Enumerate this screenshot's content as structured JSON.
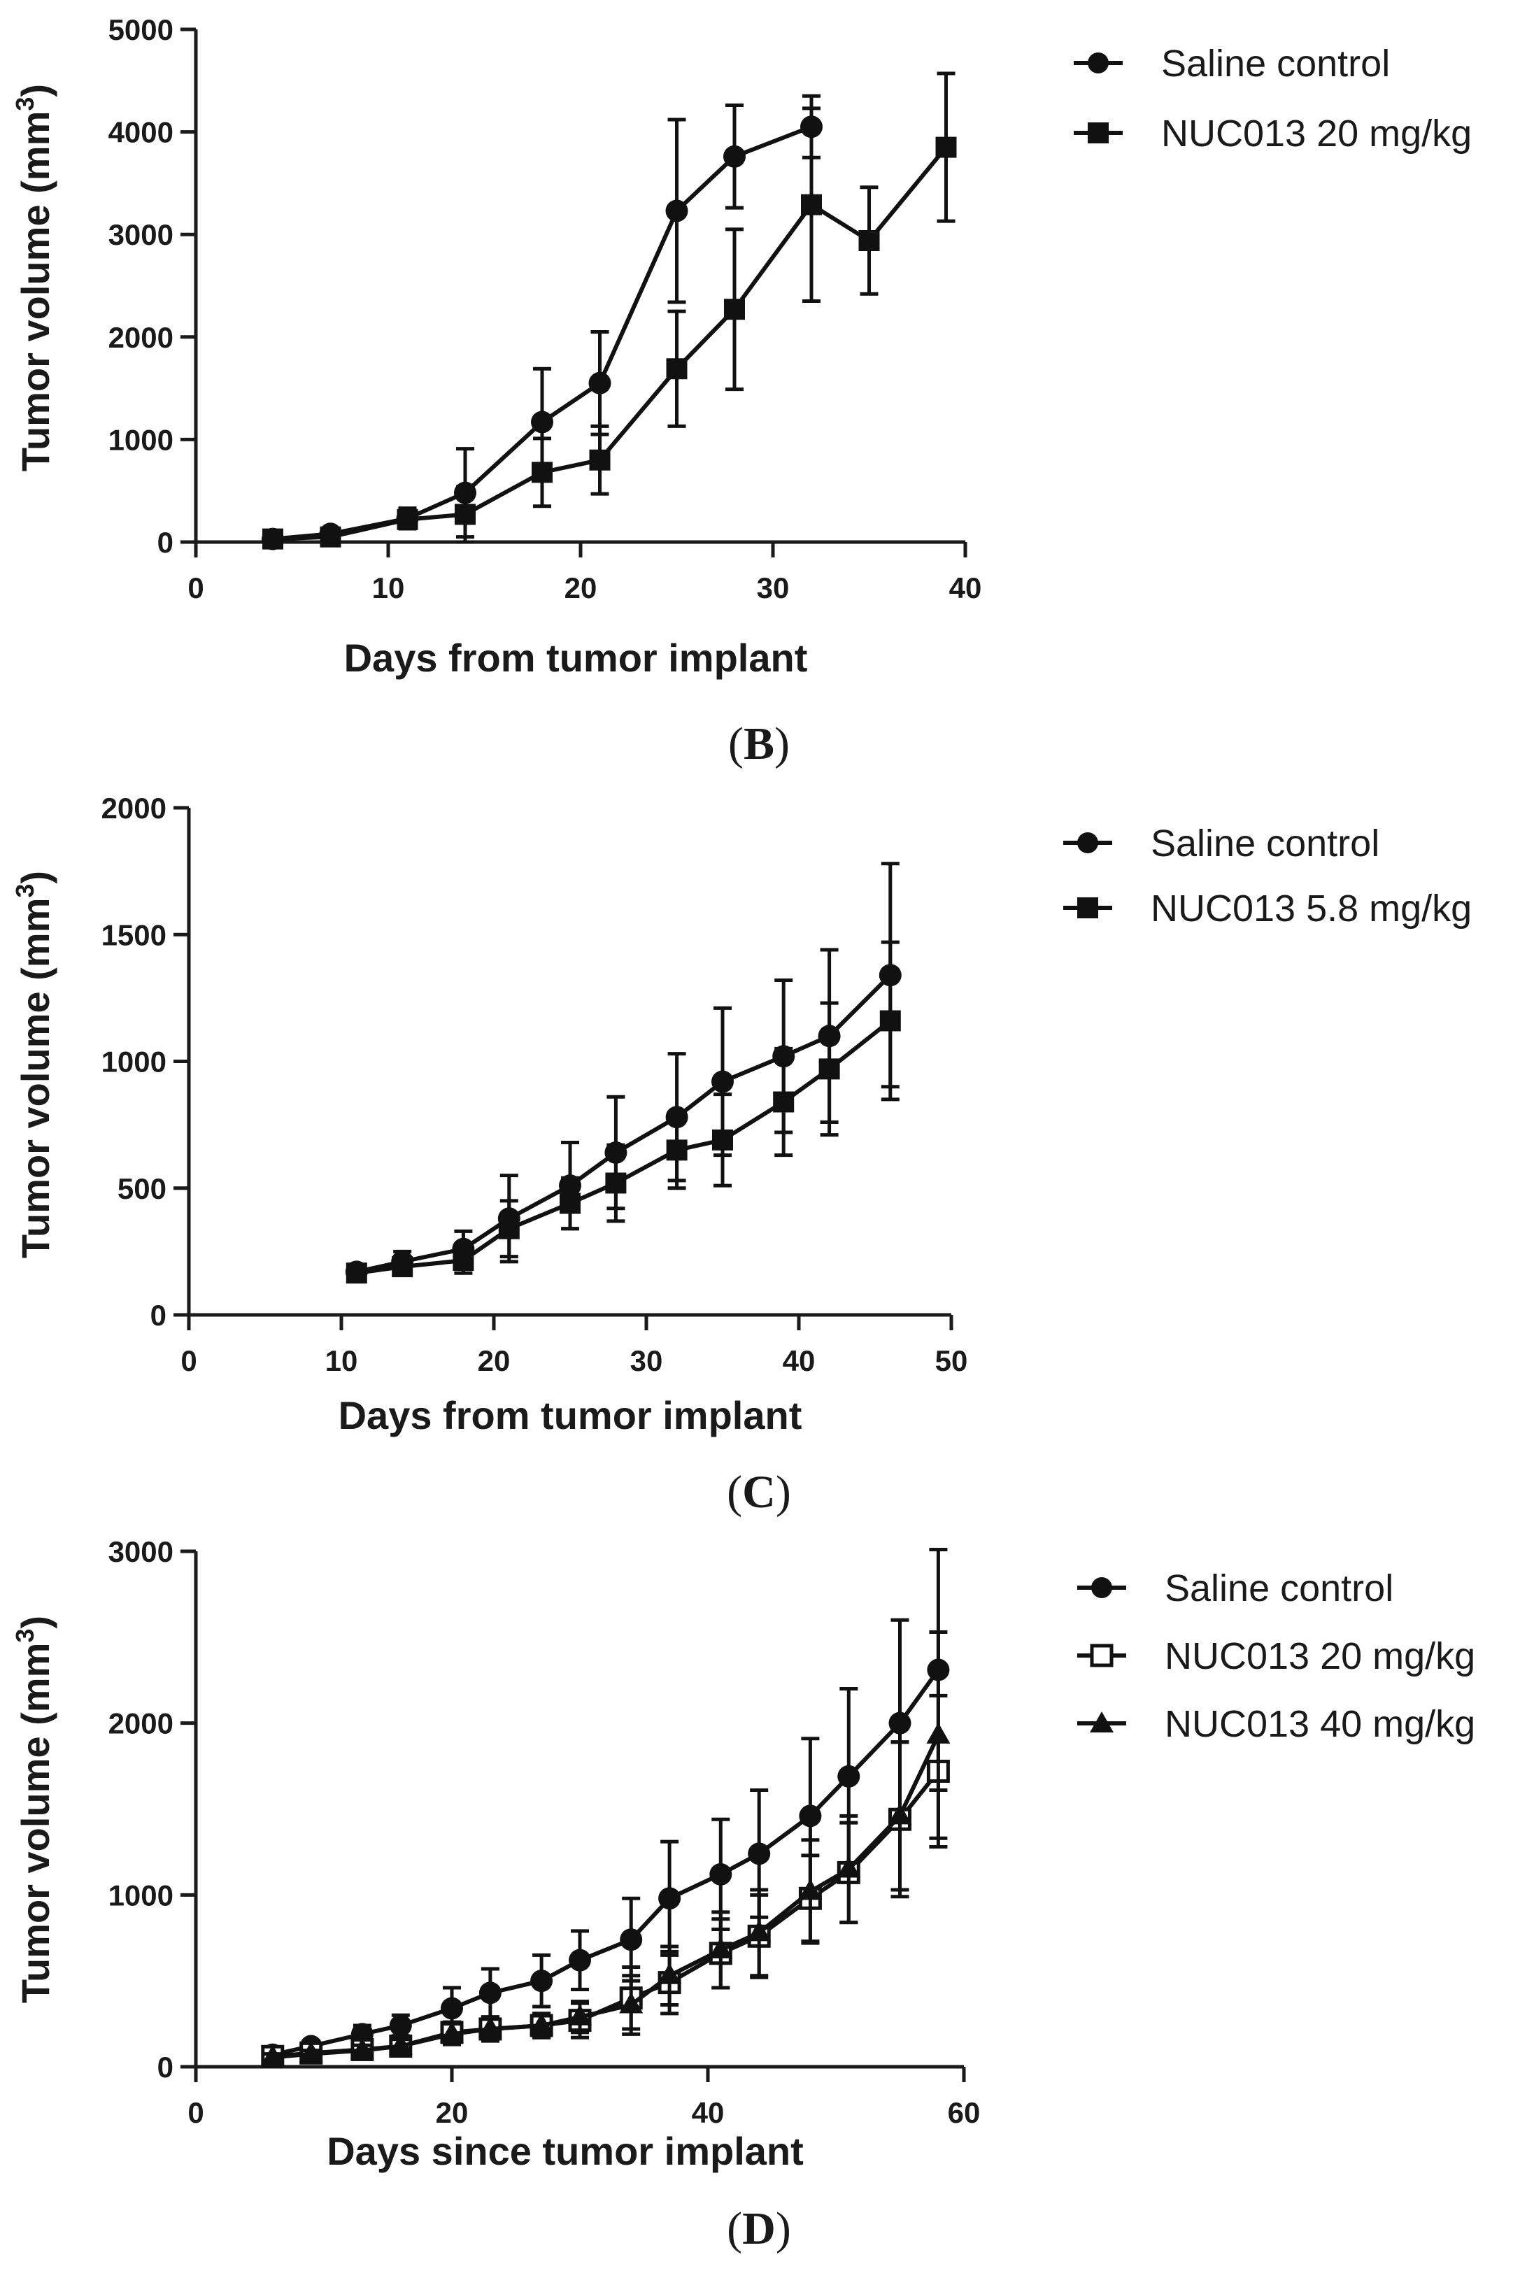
{
  "chart_data": [
    {
      "type": "line",
      "panel_label": "B",
      "xlabel": "Days from tumor implant",
      "ylabel": "Tumor volume (mm",
      "ylabel_sup": "3",
      "ylabel_close": ")",
      "xlim": [
        0,
        40
      ],
      "ylim": [
        0,
        5000
      ],
      "xticks": [
        0,
        10,
        20,
        30,
        40
      ],
      "yticks": [
        0,
        1000,
        2000,
        3000,
        4000,
        5000
      ],
      "legend_position": "right-top",
      "series": [
        {
          "name": "Saline control",
          "marker": "circle",
          "x": [
            4,
            7,
            11,
            14,
            18,
            21,
            25,
            28,
            32
          ],
          "y": [
            30,
            80,
            230,
            480,
            1170,
            1550,
            3230,
            3760,
            4050
          ],
          "err": [
            20,
            40,
            100,
            430,
            520,
            500,
            890,
            500,
            300
          ]
        },
        {
          "name": "NUC013 20 mg/kg",
          "marker": "square",
          "x": [
            4,
            7,
            11,
            14,
            18,
            21,
            25,
            28,
            32,
            35,
            39
          ],
          "y": [
            30,
            50,
            220,
            270,
            680,
            800,
            1690,
            2270,
            3290,
            2940,
            3850
          ],
          "err": [
            20,
            30,
            90,
            270,
            330,
            330,
            560,
            780,
            940,
            520,
            720
          ]
        }
      ]
    },
    {
      "type": "line",
      "panel_label": "C",
      "xlabel": "Days from tumor implant",
      "ylabel": "Tumor volume (mm",
      "ylabel_sup": "3",
      "ylabel_close": ")",
      "xlim": [
        0,
        50
      ],
      "ylim": [
        0,
        2000
      ],
      "xticks": [
        0,
        10,
        20,
        30,
        40,
        50
      ],
      "yticks": [
        0,
        500,
        1000,
        1500,
        2000
      ],
      "legend_position": "right-top",
      "series": [
        {
          "name": "Saline control",
          "marker": "circle",
          "x": [
            11,
            14,
            18,
            21,
            25,
            28,
            32,
            35,
            39,
            42,
            46
          ],
          "y": [
            170,
            210,
            260,
            380,
            510,
            640,
            780,
            920,
            1020,
            1100,
            1340
          ],
          "err": [
            20,
            40,
            70,
            170,
            170,
            220,
            250,
            290,
            300,
            340,
            440
          ]
        },
        {
          "name": "NUC013 5.8 mg/kg",
          "marker": "square",
          "x": [
            11,
            14,
            18,
            21,
            25,
            28,
            32,
            35,
            39,
            42,
            46
          ],
          "y": [
            165,
            190,
            215,
            340,
            440,
            520,
            650,
            690,
            840,
            970,
            1160
          ],
          "err": [
            20,
            30,
            50,
            110,
            100,
            150,
            150,
            180,
            210,
            260,
            310
          ]
        }
      ]
    },
    {
      "type": "line",
      "panel_label": "D",
      "xlabel": "Days since tumor implant",
      "ylabel": "Tumor volume (mm",
      "ylabel_sup": "3",
      "ylabel_close": ")",
      "xlim": [
        0,
        60
      ],
      "ylim": [
        0,
        3000
      ],
      "xticks": [
        0,
        20,
        40,
        60
      ],
      "yticks": [
        0,
        1000,
        2000,
        3000
      ],
      "legend_position": "right-top",
      "series": [
        {
          "name": "Saline control",
          "marker": "circle",
          "x": [
            6,
            9,
            13,
            16,
            20,
            23,
            27,
            30,
            34,
            37,
            41,
            44,
            48,
            51,
            55,
            58
          ],
          "y": [
            70,
            120,
            190,
            240,
            340,
            430,
            500,
            620,
            740,
            980,
            1120,
            1240,
            1460,
            1690,
            2000,
            2310
          ],
          "err": [
            20,
            30,
            50,
            60,
            120,
            140,
            150,
            170,
            240,
            330,
            320,
            370,
            450,
            510,
            600,
            700
          ]
        },
        {
          "name": "NUC013 20 mg/kg",
          "marker": "open-square",
          "x": [
            6,
            9,
            13,
            16,
            20,
            23,
            27,
            30,
            34,
            37,
            41,
            44,
            48,
            51,
            55,
            58
          ],
          "y": [
            60,
            80,
            100,
            120,
            200,
            220,
            240,
            270,
            400,
            490,
            660,
            760,
            980,
            1130,
            1440,
            1720
          ],
          "err": [
            20,
            20,
            30,
            40,
            60,
            60,
            70,
            100,
            180,
            180,
            200,
            240,
            250,
            290,
            450,
            440
          ]
        },
        {
          "name": "NUC013 40 mg/kg",
          "marker": "triangle",
          "x": [
            6,
            9,
            13,
            16,
            20,
            23,
            27,
            30,
            34,
            37,
            41,
            44,
            48,
            51,
            55,
            58
          ],
          "y": [
            55,
            75,
            95,
            120,
            190,
            220,
            240,
            290,
            360,
            530,
            680,
            780,
            1020,
            1150,
            1460,
            1930
          ],
          "err": [
            20,
            20,
            30,
            40,
            60,
            70,
            70,
            90,
            170,
            170,
            220,
            250,
            300,
            310,
            430,
            600
          ]
        }
      ]
    }
  ]
}
